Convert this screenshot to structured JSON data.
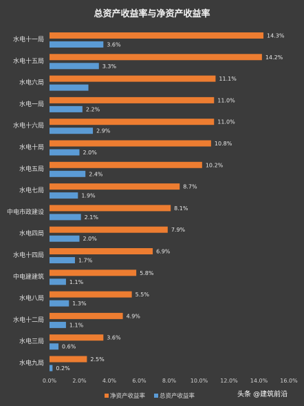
{
  "chart_data": {
    "type": "bar",
    "orientation": "horizontal",
    "title": "总资产收益率与净资产收益率",
    "categories": [
      "水电十一局",
      "水电十五局",
      "水电六局",
      "水电一局",
      "水电十六局",
      "水电十局",
      "水电五局",
      "水电七局",
      "中电市政建设",
      "水电四局",
      "水电十四局",
      "中电建建筑",
      "水电八局",
      "水电十二局",
      "水电三局",
      "水电九局"
    ],
    "series": [
      {
        "name": "净资产收益率",
        "color": "#ed7d31",
        "values": [
          14.3,
          14.2,
          11.1,
          11.0,
          11.0,
          10.8,
          10.2,
          8.7,
          8.1,
          7.9,
          6.9,
          5.8,
          5.5,
          4.9,
          3.6,
          2.5
        ],
        "labels": [
          "14.3%",
          "14.2%",
          "11.1%",
          "11.0%",
          "11.0%",
          "10.8%",
          "10.2%",
          "8.7%",
          "8.1%",
          "7.9%",
          "6.9%",
          "5.8%",
          "5.5%",
          "4.9%",
          "3.6%",
          "2.5%"
        ]
      },
      {
        "name": "总资产收益率",
        "color": "#5b9bd5",
        "values": [
          3.6,
          3.3,
          2.6,
          2.2,
          2.9,
          2.0,
          2.4,
          1.9,
          2.1,
          2.0,
          1.7,
          1.1,
          1.3,
          1.1,
          0.6,
          0.2
        ],
        "labels": [
          "3.6%",
          "3.3%",
          "",
          "2.2%",
          "2.9%",
          "2.0%",
          "2.4%",
          "1.9%",
          "2.1%",
          "2.0%",
          "1.7%",
          "1.1%",
          "1.3%",
          "1.1%",
          "0.6%",
          "0.2%"
        ]
      }
    ],
    "xlim": [
      0,
      16
    ],
    "xticks": [
      "0.0%",
      "2.0%",
      "4.0%",
      "6.0%",
      "8.0%",
      "10.0%",
      "12.0%",
      "14.0%",
      "16.0%"
    ],
    "grid": false,
    "legend_position": "bottom"
  },
  "watermark": "头条 @建筑前沿"
}
